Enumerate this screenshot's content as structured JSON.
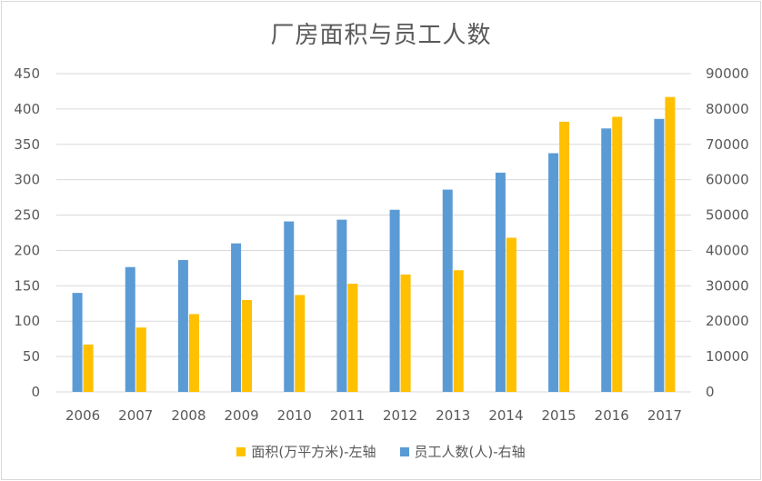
{
  "chart_data": {
    "type": "bar",
    "title": "厂房面积与员工人数",
    "categories": [
      "2006",
      "2007",
      "2008",
      "2009",
      "2010",
      "2011",
      "2012",
      "2013",
      "2014",
      "2015",
      "2016",
      "2017"
    ],
    "series": [
      {
        "name": "员工人数(人)-右轴",
        "axis": "right",
        "color": "#5b9bd5",
        "values": [
          28000,
          35300,
          37300,
          42000,
          48200,
          48700,
          51500,
          57200,
          62000,
          67500,
          74500,
          77200
        ]
      },
      {
        "name": "面积(万平方米)-左轴",
        "axis": "left",
        "color": "#ffc000",
        "values": [
          67,
          91,
          110,
          130,
          137,
          153,
          166,
          172,
          218,
          382,
          389,
          417
        ]
      }
    ],
    "y_left": {
      "ylim": [
        0,
        450
      ],
      "ticks": [
        "0",
        "50",
        "100",
        "150",
        "200",
        "250",
        "300",
        "350",
        "400",
        "450"
      ]
    },
    "y_right": {
      "ylim": [
        0,
        90000
      ],
      "ticks": [
        "0",
        "10000",
        "20000",
        "30000",
        "40000",
        "50000",
        "60000",
        "70000",
        "80000",
        "90000"
      ]
    },
    "legend_order": [
      "面积(万平方米)-左轴",
      "员工人数(人)-右轴"
    ],
    "legend_position": "bottom",
    "grid": true
  }
}
